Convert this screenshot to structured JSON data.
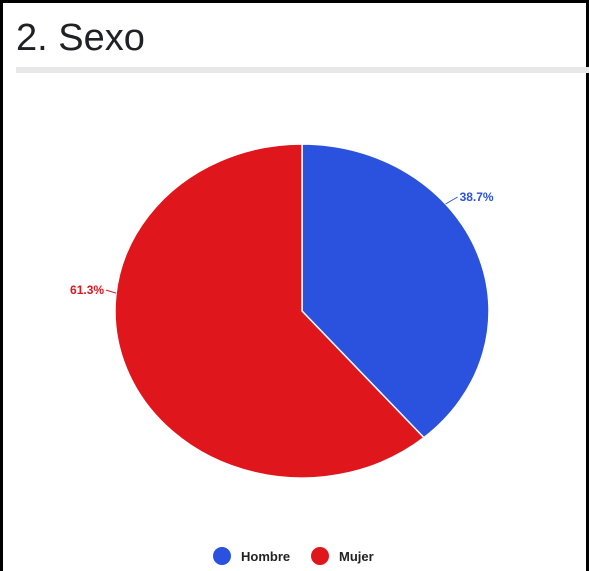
{
  "title": "2. Sexo",
  "chart_data": {
    "type": "pie",
    "series": [
      {
        "slices": [
          {
            "label": "Hombre",
            "value": 38.7,
            "display": "38.7%",
            "color": "#2a52de"
          },
          {
            "label": "Mujer",
            "value": 61.3,
            "display": "61.3%",
            "color": "#e0161d"
          }
        ]
      }
    ],
    "legend": {
      "position": "bottom",
      "entries": [
        "Hombre",
        "Mujer"
      ]
    },
    "start_angle": "12 o'clock",
    "direction": "clockwise"
  }
}
